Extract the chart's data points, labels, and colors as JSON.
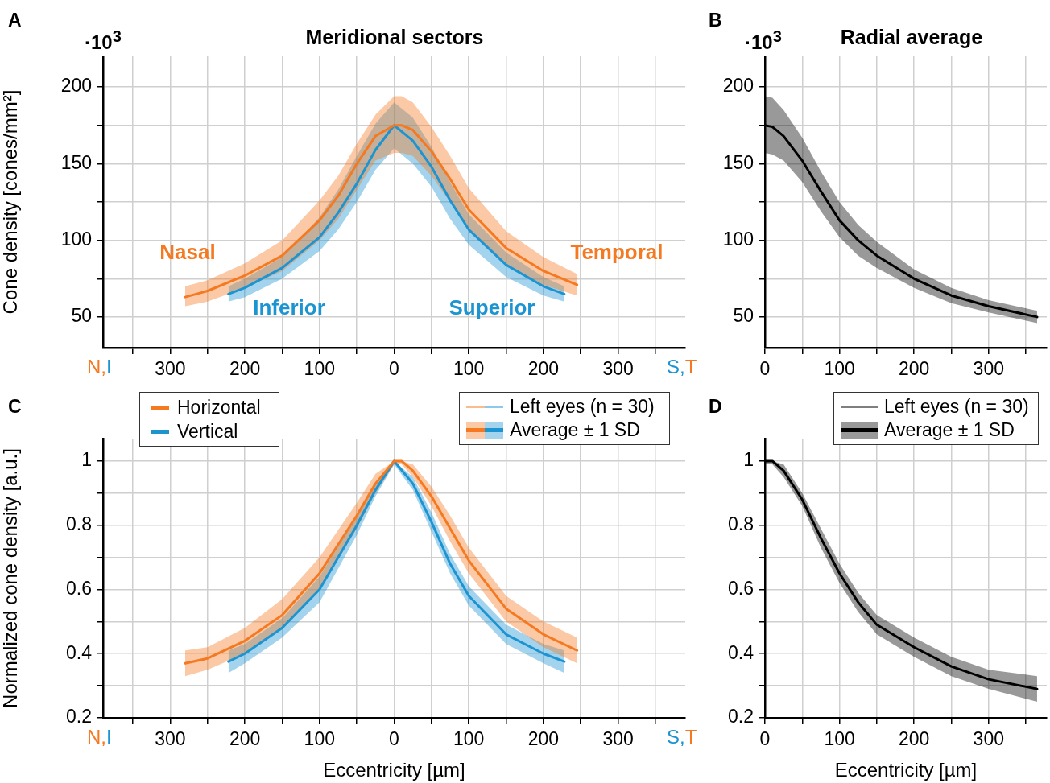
{
  "chart_data": [
    {
      "type": "line",
      "title": "Meridional sectors",
      "ylabel": "Cone density [cones/mm²]",
      "xlim": [
        -390,
        390
      ],
      "xticks": [
        {
          "value": -350,
          "label": null
        },
        {
          "value": -300,
          "label": "300"
        },
        {
          "value": -250,
          "label": null
        },
        {
          "value": -200,
          "label": "200"
        },
        {
          "value": -150,
          "label": null
        },
        {
          "value": -100,
          "label": "100"
        },
        {
          "value": -50,
          "label": null
        },
        0,
        {
          "value": 50,
          "label": null
        },
        100,
        {
          "value": 150,
          "label": null
        },
        200,
        {
          "value": 250,
          "label": null
        },
        300,
        {
          "value": 350,
          "label": null
        }
      ],
      "ylim": [
        30,
        220
      ],
      "yticks": [
        50,
        {
          "value": 75,
          "label": null
        },
        100,
        {
          "value": 125,
          "label": null
        },
        150,
        {
          "value": 175,
          "label": null
        },
        200
      ],
      "grid": true,
      "series": [
        {
          "color": "#f47920",
          "x": [
            -280,
            -250,
            -200,
            -150,
            -100,
            -75,
            -50,
            -25,
            0,
            10,
            25,
            50,
            75,
            100,
            150,
            200,
            245
          ],
          "values": [
            63,
            67,
            77,
            90,
            113,
            129,
            150,
            168,
            175,
            175,
            172,
            158,
            140,
            120,
            95,
            80,
            71
          ],
          "lower": [
            57,
            60,
            69,
            80,
            100,
            114,
            133,
            152,
            157,
            157,
            155,
            142,
            125,
            106,
            84,
            71,
            64
          ],
          "upper": [
            70,
            74,
            85,
            100,
            126,
            142,
            163,
            182,
            194,
            194,
            190,
            174,
            155,
            134,
            106,
            89,
            78
          ]
        },
        {
          "color": "#1c94d2",
          "x": [
            -222,
            -200,
            -150,
            -100,
            -75,
            -50,
            -25,
            0,
            25,
            50,
            75,
            100,
            150,
            200,
            228
          ],
          "values": [
            65,
            69,
            82,
            102,
            118,
            137,
            159,
            175,
            165,
            148,
            126,
            107,
            84,
            70,
            65
          ],
          "lower": [
            60,
            63,
            75,
            93,
            107,
            125,
            146,
            160,
            150,
            135,
            114,
            97,
            76,
            64,
            60
          ],
          "upper": [
            70,
            75,
            89,
            115,
            133,
            155,
            176,
            190,
            180,
            161,
            138,
            117,
            92,
            76,
            70
          ]
        }
      ],
      "annotations": [
        "A",
        "·10$^{3}$",
        "N,I",
        "S,T",
        "Nasal",
        "Temporal",
        "Inferior",
        "Superior"
      ]
    },
    {
      "type": "line",
      "title": "Radial average",
      "xlim": [
        0,
        378
      ],
      "xticks": [
        0,
        {
          "value": 50,
          "label": null
        },
        100,
        {
          "value": 150,
          "label": null
        },
        200,
        {
          "value": 250,
          "label": null
        },
        300,
        {
          "value": 350,
          "label": null
        }
      ],
      "ylim": [
        30,
        220
      ],
      "yticks": [
        50,
        {
          "value": 75,
          "label": null
        },
        100,
        {
          "value": 125,
          "label": null
        },
        150,
        {
          "value": 175,
          "label": null
        },
        200
      ],
      "grid": true,
      "series": [
        {
          "color": "#000000",
          "x": [
            0,
            10,
            25,
            50,
            75,
            100,
            125,
            150,
            200,
            250,
            300,
            365
          ],
          "values": [
            175,
            174,
            168,
            152,
            132,
            113,
            100,
            90,
            75,
            64,
            57,
            50
          ],
          "lower": [
            157,
            156,
            152,
            138,
            119,
            102,
            90,
            82,
            69,
            59,
            53,
            46
          ],
          "upper": [
            194,
            193,
            185,
            167,
            145,
            125,
            110,
            99,
            81,
            69,
            61,
            54
          ]
        }
      ],
      "annotations": [
        "B",
        "·10$^{3}$"
      ]
    },
    {
      "type": "line",
      "xlabel": "Eccentricity [µm]",
      "ylabel": "Normalized cone density [a.u.]",
      "xlim": [
        -390,
        390
      ],
      "xticks": [
        {
          "value": -350,
          "label": null
        },
        {
          "value": -300,
          "label": "300"
        },
        {
          "value": -250,
          "label": null
        },
        {
          "value": -200,
          "label": "200"
        },
        {
          "value": -150,
          "label": null
        },
        {
          "value": -100,
          "label": "100"
        },
        {
          "value": -50,
          "label": null
        },
        0,
        {
          "value": 50,
          "label": null
        },
        100,
        {
          "value": 150,
          "label": null
        },
        200,
        {
          "value": 250,
          "label": null
        },
        300,
        {
          "value": 350,
          "label": null
        }
      ],
      "ylim": [
        0.2,
        1.07
      ],
      "yticks": [
        0.2,
        {
          "value": 0.3,
          "label": null
        },
        0.4,
        {
          "value": 0.5,
          "label": null
        },
        0.6,
        {
          "value": 0.7,
          "label": null
        },
        0.8,
        {
          "value": 0.9,
          "label": null
        },
        1
      ],
      "grid": true,
      "legend": "top left",
      "series": [
        {
          "name": "Horizontal",
          "color": "#f47920",
          "x": [
            -280,
            -250,
            -200,
            -150,
            -100,
            -50,
            -25,
            0,
            10,
            25,
            50,
            75,
            100,
            150,
            200,
            245
          ],
          "values": [
            0.37,
            0.385,
            0.44,
            0.52,
            0.65,
            0.83,
            0.93,
            1.0,
            1.0,
            0.97,
            0.89,
            0.79,
            0.69,
            0.54,
            0.46,
            0.41
          ],
          "lower": [
            0.33,
            0.35,
            0.4,
            0.48,
            0.6,
            0.79,
            0.9,
            0.99,
            0.99,
            0.95,
            0.86,
            0.75,
            0.65,
            0.5,
            0.42,
            0.37
          ],
          "upper": [
            0.41,
            0.42,
            0.48,
            0.57,
            0.7,
            0.87,
            0.96,
            1.0,
            1.0,
            0.99,
            0.92,
            0.83,
            0.73,
            0.58,
            0.5,
            0.45
          ]
        },
        {
          "name": "Vertical",
          "color": "#1c94d2",
          "x": [
            -222,
            -200,
            -150,
            -100,
            -50,
            -25,
            0,
            25,
            50,
            75,
            100,
            150,
            200,
            228
          ],
          "values": [
            0.375,
            0.4,
            0.48,
            0.6,
            0.8,
            0.91,
            1.0,
            0.93,
            0.81,
            0.68,
            0.58,
            0.46,
            0.4,
            0.375
          ],
          "lower": [
            0.34,
            0.37,
            0.45,
            0.56,
            0.77,
            0.89,
            0.99,
            0.91,
            0.78,
            0.65,
            0.55,
            0.43,
            0.37,
            0.34
          ],
          "upper": [
            0.41,
            0.43,
            0.51,
            0.64,
            0.83,
            0.93,
            1.0,
            0.95,
            0.84,
            0.71,
            0.61,
            0.49,
            0.43,
            0.41
          ]
        }
      ],
      "annotations": [
        "C",
        "N,I",
        "S,T",
        "Left eyes (n = 30)",
        "Average ± 1 SD"
      ]
    },
    {
      "type": "line",
      "xlabel": "Eccentricity [µm]",
      "xlim": [
        0,
        378
      ],
      "xticks": [
        0,
        {
          "value": 50,
          "label": null
        },
        100,
        {
          "value": 150,
          "label": null
        },
        200,
        {
          "value": 250,
          "label": null
        },
        300,
        {
          "value": 350,
          "label": null
        }
      ],
      "ylim": [
        0.2,
        1.07
      ],
      "yticks": [
        0.2,
        {
          "value": 0.3,
          "label": null
        },
        0.4,
        {
          "value": 0.5,
          "label": null
        },
        0.6,
        {
          "value": 0.7,
          "label": null
        },
        0.8,
        {
          "value": 0.9,
          "label": null
        },
        1
      ],
      "grid": true,
      "series": [
        {
          "color": "#000000",
          "x": [
            0,
            10,
            25,
            50,
            75,
            100,
            125,
            150,
            200,
            250,
            300,
            365
          ],
          "values": [
            1.0,
            1.0,
            0.97,
            0.88,
            0.76,
            0.65,
            0.56,
            0.49,
            0.42,
            0.36,
            0.32,
            0.29
          ],
          "lower": [
            0.99,
            0.99,
            0.95,
            0.86,
            0.73,
            0.62,
            0.53,
            0.46,
            0.39,
            0.33,
            0.29,
            0.25
          ],
          "upper": [
            1.0,
            1.0,
            0.99,
            0.9,
            0.79,
            0.68,
            0.59,
            0.52,
            0.45,
            0.39,
            0.35,
            0.33
          ]
        }
      ],
      "annotations": [
        "D",
        "Left eyes (n = 30)",
        "Average ± 1 SD"
      ]
    }
  ]
}
